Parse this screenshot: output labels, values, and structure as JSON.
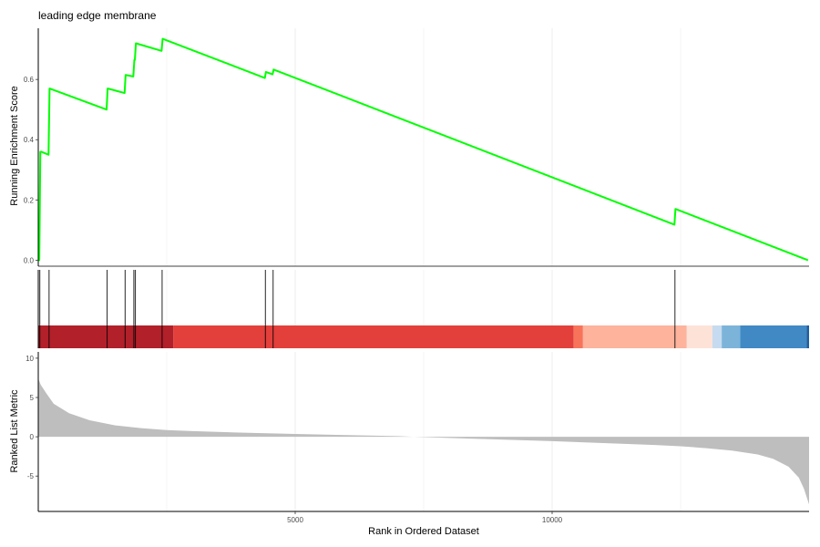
{
  "chart_data": {
    "type": "line",
    "title": "leading edge membrane",
    "xlabel": "Rank in Ordered Dataset",
    "xlim": [
      0,
      15000
    ],
    "x_ticks": [
      5000,
      10000
    ],
    "grid": "vertical",
    "colors": {
      "es_line": "#00ff00",
      "metric_fill": "#bebebe",
      "hit_line": "#000000",
      "axis": "#000000",
      "grid": "#ebebeb"
    },
    "panels": {
      "enrichment": {
        "ylabel": "Running Enrichment Score",
        "ylim": [
          -0.02,
          0.77
        ],
        "y_ticks": [
          0.0,
          0.2,
          0.4,
          0.6
        ],
        "y_tick_labels": [
          "0.0",
          "0.2",
          "0.4",
          "0.6"
        ],
        "series": [
          {
            "x": [
              0,
              20,
              40,
              60,
              200,
              220,
              1330,
              1350,
              1680,
              1700,
              1850,
              1870,
              1880,
              1900,
              2400,
              2420,
              4410,
              4430,
              4560,
              4580,
              12380,
              12400,
              14980
            ],
            "y": [
              0.0,
              0.0,
              0.36,
              0.36,
              0.35,
              0.57,
              0.5,
              0.57,
              0.555,
              0.615,
              0.61,
              0.665,
              0.665,
              0.72,
              0.695,
              0.735,
              0.605,
              0.625,
              0.617,
              0.633,
              0.118,
              0.17,
              0.0
            ]
          }
        ]
      },
      "hits": {
        "positions": [
          30,
          210,
          1340,
          1690,
          1860,
          1890,
          2410,
          4420,
          4570,
          12390
        ]
      },
      "rank_bar": {
        "segments": [
          {
            "start": 0,
            "end": 2630,
            "color": "#b2202a"
          },
          {
            "start": 2630,
            "end": 10420,
            "color": "#e3403b"
          },
          {
            "start": 10420,
            "end": 10600,
            "color": "#f7735a"
          },
          {
            "start": 10600,
            "end": 12620,
            "color": "#fdb39c"
          },
          {
            "start": 12620,
            "end": 13120,
            "color": "#fde2d8"
          },
          {
            "start": 13120,
            "end": 13300,
            "color": "#c6dbef"
          },
          {
            "start": 13300,
            "end": 13660,
            "color": "#7cb4d9"
          },
          {
            "start": 13660,
            "end": 14950,
            "color": "#4089c5"
          },
          {
            "start": 14950,
            "end": 15000,
            "color": "#1f5fa0"
          }
        ]
      },
      "metric": {
        "ylabel": "Ranked List Metric",
        "ylim": [
          -9.5,
          10.8
        ],
        "y_ticks": [
          10,
          5,
          0,
          -5
        ],
        "y_tick_labels": [
          "10",
          "5",
          "0",
          "-5"
        ],
        "curve": {
          "x": [
            0,
            50,
            150,
            300,
            600,
            1000,
            1500,
            2000,
            2500,
            3000,
            4000,
            5000,
            6000,
            7000,
            7300,
            8000,
            9000,
            10000,
            11000,
            12000,
            12500,
            13000,
            13500,
            14000,
            14300,
            14600,
            14800,
            14900,
            14960,
            15000
          ],
          "y": [
            7.4,
            6.6,
            5.6,
            4.2,
            3.0,
            2.1,
            1.45,
            1.1,
            0.85,
            0.72,
            0.52,
            0.36,
            0.22,
            0.08,
            0.0,
            -0.15,
            -0.35,
            -0.55,
            -0.8,
            -1.05,
            -1.2,
            -1.45,
            -1.75,
            -2.25,
            -2.8,
            -3.8,
            -5.2,
            -6.6,
            -7.8,
            -8.6
          ]
        }
      }
    }
  }
}
